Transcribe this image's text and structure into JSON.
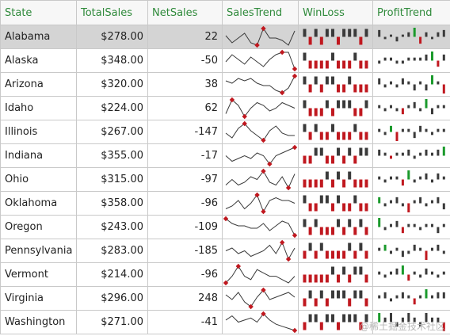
{
  "columns": [
    "State",
    "TotalSales",
    "NetSales",
    "SalesTrend",
    "WinLoss",
    "ProfitTrend"
  ],
  "colors": {
    "header_text": "#2f8a3b",
    "sparkline": "#3a3a3a",
    "marker": "#c0181f",
    "loss": "#c0181f",
    "positive_highlight": "#1b9a2c",
    "selected_row": "#d4d4d4"
  },
  "selected_row_index": 0,
  "rows": [
    {
      "state": "Alabama",
      "total_sales": "$278.00",
      "net_sales": "22",
      "sales_trend": [
        6,
        3,
        5,
        7,
        3,
        2,
        9,
        5,
        5,
        4,
        2,
        8
      ],
      "win_loss": [
        1,
        -1,
        1,
        -1,
        1,
        1,
        -1,
        1,
        1,
        1,
        -1,
        1
      ],
      "profit_trend": [
        3,
        -1,
        1,
        -2,
        1,
        2,
        4,
        -3,
        2,
        -1,
        2,
        3
      ]
    },
    {
      "state": "Alaska",
      "total_sales": "$348.00",
      "net_sales": "-50",
      "sales_trend": [
        4,
        7,
        5,
        3,
        6,
        4,
        2,
        5,
        7,
        8,
        8,
        1
      ],
      "win_loss": [
        1,
        -1,
        -1,
        -1,
        -1,
        1,
        -1,
        -1,
        -1,
        1,
        -1,
        -1
      ],
      "profit_trend": [
        -1,
        1,
        1,
        -1,
        -1,
        1,
        1,
        1,
        2,
        3,
        -2,
        2
      ]
    },
    {
      "state": "Arizona",
      "total_sales": "$320.00",
      "net_sales": "38",
      "sales_trend": [
        7,
        6,
        8,
        7,
        8,
        6,
        5,
        5,
        3,
        2,
        4,
        9
      ],
      "win_loss": [
        1,
        -1,
        1,
        -1,
        1,
        1,
        -1,
        -1,
        1,
        -1,
        -1,
        -1
      ],
      "profit_trend": [
        2,
        -1,
        1,
        -1,
        2,
        1,
        -2,
        1,
        -2,
        3,
        1,
        -3
      ]
    },
    {
      "state": "Idaho",
      "total_sales": "$224.00",
      "net_sales": "62",
      "sales_trend": [
        3,
        8,
        6,
        2,
        5,
        7,
        6,
        4,
        5,
        7,
        6,
        5
      ],
      "win_loss": [
        1,
        -1,
        -1,
        -1,
        1,
        -1,
        1,
        1,
        1,
        -1,
        -1,
        1
      ],
      "profit_trend": [
        1,
        -1,
        1,
        -1,
        -2,
        1,
        2,
        -1,
        3,
        -2,
        1,
        1
      ]
    },
    {
      "state": "Illinois",
      "total_sales": "$267.00",
      "net_sales": "-147",
      "sales_trend": [
        5,
        3,
        7,
        9,
        6,
        4,
        2,
        6,
        8,
        5,
        4,
        4
      ],
      "win_loss": [
        1,
        -1,
        1,
        -1,
        -1,
        1,
        -1,
        -1,
        -1,
        1,
        -1,
        -1
      ],
      "profit_trend": [
        1,
        -1,
        2,
        -3,
        1,
        1,
        -2,
        2,
        1,
        -1,
        1,
        1
      ]
    },
    {
      "state": "Indiana",
      "total_sales": "$355.00",
      "net_sales": "-17",
      "sales_trend": [
        6,
        4,
        5,
        6,
        5,
        7,
        6,
        3,
        6,
        7,
        8,
        9
      ],
      "win_loss": [
        -1,
        -1,
        1,
        1,
        -1,
        -1,
        1,
        -1,
        1,
        -1,
        1,
        1
      ],
      "profit_trend": [
        2,
        1,
        -1,
        1,
        1,
        2,
        -1,
        1,
        2,
        1,
        2,
        3
      ]
    },
    {
      "state": "Ohio",
      "total_sales": "$315.00",
      "net_sales": "-97",
      "sales_trend": [
        4,
        6,
        4,
        5,
        7,
        6,
        9,
        5,
        4,
        7,
        3,
        8
      ],
      "win_loss": [
        -1,
        -1,
        -1,
        -1,
        1,
        -1,
        1,
        -1,
        1,
        -1,
        -1,
        -1
      ],
      "profit_trend": [
        1,
        -1,
        1,
        1,
        -2,
        3,
        -1,
        1,
        2,
        -1,
        2,
        1
      ]
    },
    {
      "state": "Oklahoma",
      "total_sales": "$358.00",
      "net_sales": "-96",
      "sales_trend": [
        3,
        4,
        6,
        3,
        5,
        8,
        2,
        6,
        7,
        6,
        6,
        5
      ],
      "win_loss": [
        1,
        -1,
        -1,
        1,
        1,
        -1,
        1,
        -1,
        -1,
        1,
        -1,
        -1
      ],
      "profit_trend": [
        2,
        -1,
        1,
        2,
        -1,
        -3,
        1,
        2,
        -1,
        1,
        2,
        -2
      ]
    },
    {
      "state": "Oregon",
      "total_sales": "$243.00",
      "net_sales": "-109",
      "sales_trend": [
        9,
        7,
        6,
        6,
        5,
        5,
        7,
        4,
        6,
        8,
        7,
        2
      ],
      "win_loss": [
        1,
        -1,
        1,
        -1,
        -1,
        -1,
        1,
        -1,
        1,
        -1,
        1,
        -1
      ],
      "profit_trend": [
        3,
        -1,
        1,
        2,
        -2,
        1,
        1,
        -1,
        1,
        1,
        -2,
        1
      ]
    },
    {
      "state": "Pennsylvania",
      "total_sales": "$283.00",
      "net_sales": "-185",
      "sales_trend": [
        5,
        6,
        4,
        5,
        3,
        4,
        5,
        7,
        4,
        8,
        2,
        6
      ],
      "win_loss": [
        -1,
        1,
        -1,
        1,
        -1,
        -1,
        -1,
        -1,
        1,
        -1,
        1,
        -1
      ],
      "profit_trend": [
        1,
        2,
        -1,
        1,
        -2,
        -1,
        2,
        1,
        -3,
        1,
        2,
        -1
      ]
    },
    {
      "state": "Vermont",
      "total_sales": "$214.00",
      "net_sales": "-96",
      "sales_trend": [
        3,
        5,
        8,
        5,
        4,
        7,
        6,
        5,
        5,
        4,
        3,
        5
      ],
      "win_loss": [
        -1,
        -1,
        -1,
        -1,
        -1,
        1,
        -1,
        1,
        -1,
        1,
        1,
        -1
      ],
      "profit_trend": [
        1,
        -1,
        1,
        2,
        3,
        -2,
        1,
        -1,
        2,
        1,
        -1,
        1
      ]
    },
    {
      "state": "Virginia",
      "total_sales": "$296.00",
      "net_sales": "248",
      "sales_trend": [
        7,
        5,
        8,
        4,
        2,
        6,
        9,
        5,
        6,
        7,
        8,
        6
      ],
      "win_loss": [
        -1,
        1,
        -1,
        1,
        -1,
        1,
        1,
        1,
        -1,
        1,
        1,
        -1
      ],
      "profit_trend": [
        1,
        2,
        -1,
        1,
        2,
        1,
        -2,
        1,
        3,
        1,
        2,
        2
      ]
    },
    {
      "state": "Washington",
      "total_sales": "$271.00",
      "net_sales": "-41",
      "sales_trend": [
        6,
        8,
        5,
        6,
        7,
        5,
        9,
        6,
        4,
        3,
        2,
        1
      ],
      "win_loss": [
        -1,
        1,
        1,
        -1,
        1,
        1,
        -1,
        1,
        1,
        1,
        -1,
        1
      ],
      "profit_trend": [
        2,
        1,
        2,
        -1,
        1,
        2,
        1,
        -1,
        2,
        1,
        1,
        -2
      ]
    }
  ],
  "watermark": "@稀土掘金技术社区"
}
